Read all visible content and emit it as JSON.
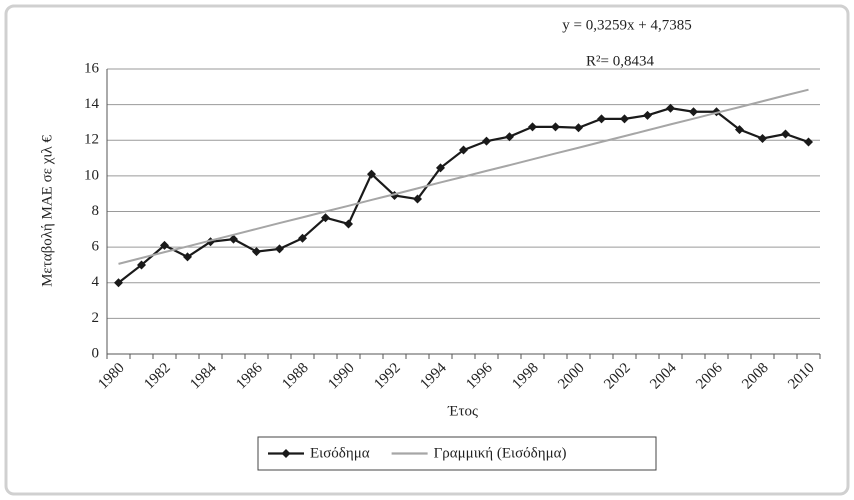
{
  "chart_data": {
    "type": "line",
    "y_label": "Μεταβολή ΜΑΕ σε χιλ €",
    "x_label": "Έτος",
    "annotations": [
      "y = 0,3259x + 4,7385",
      "R²= 0,8434"
    ],
    "categories": [
      "1980",
      null,
      "1982",
      null,
      "1984",
      null,
      "1986",
      null,
      "1988",
      null,
      "1990",
      null,
      "1992",
      null,
      "1994",
      null,
      "1996",
      null,
      "1998",
      null,
      "2000",
      null,
      "2002",
      null,
      "2004",
      null,
      "2006",
      null,
      "2008",
      null,
      "2010"
    ],
    "series": [
      {
        "name": "Εισόδημα",
        "color": "#1a1a1a",
        "marker": "diamond",
        "values": [
          4.0,
          5.0,
          6.1,
          5.45,
          6.3,
          6.45,
          5.75,
          5.9,
          6.5,
          7.65,
          7.3,
          10.1,
          8.9,
          8.7,
          10.45,
          11.45,
          11.95,
          12.2,
          12.75,
          12.75,
          12.7,
          13.2,
          13.2,
          13.4,
          13.8,
          13.6,
          13.6,
          12.6,
          12.1,
          12.35,
          11.9
        ]
      },
      {
        "name": "Γραμμική (Εισόδημα)",
        "color": "#a6a6a6",
        "marker": "none",
        "values": [
          5.06,
          5.39,
          5.72,
          6.04,
          6.37,
          6.69,
          7.02,
          7.35,
          7.67,
          8.0,
          8.32,
          8.65,
          8.97,
          9.3,
          9.63,
          9.95,
          10.28,
          10.6,
          10.93,
          11.26,
          11.58,
          11.91,
          12.23,
          12.56,
          12.89,
          13.21,
          13.54,
          13.86,
          14.19,
          14.52,
          14.84
        ]
      }
    ],
    "ylim": [
      0,
      16
    ],
    "yticks": [
      0,
      2,
      4,
      6,
      8,
      10,
      12,
      14,
      16
    ],
    "grid": true
  }
}
